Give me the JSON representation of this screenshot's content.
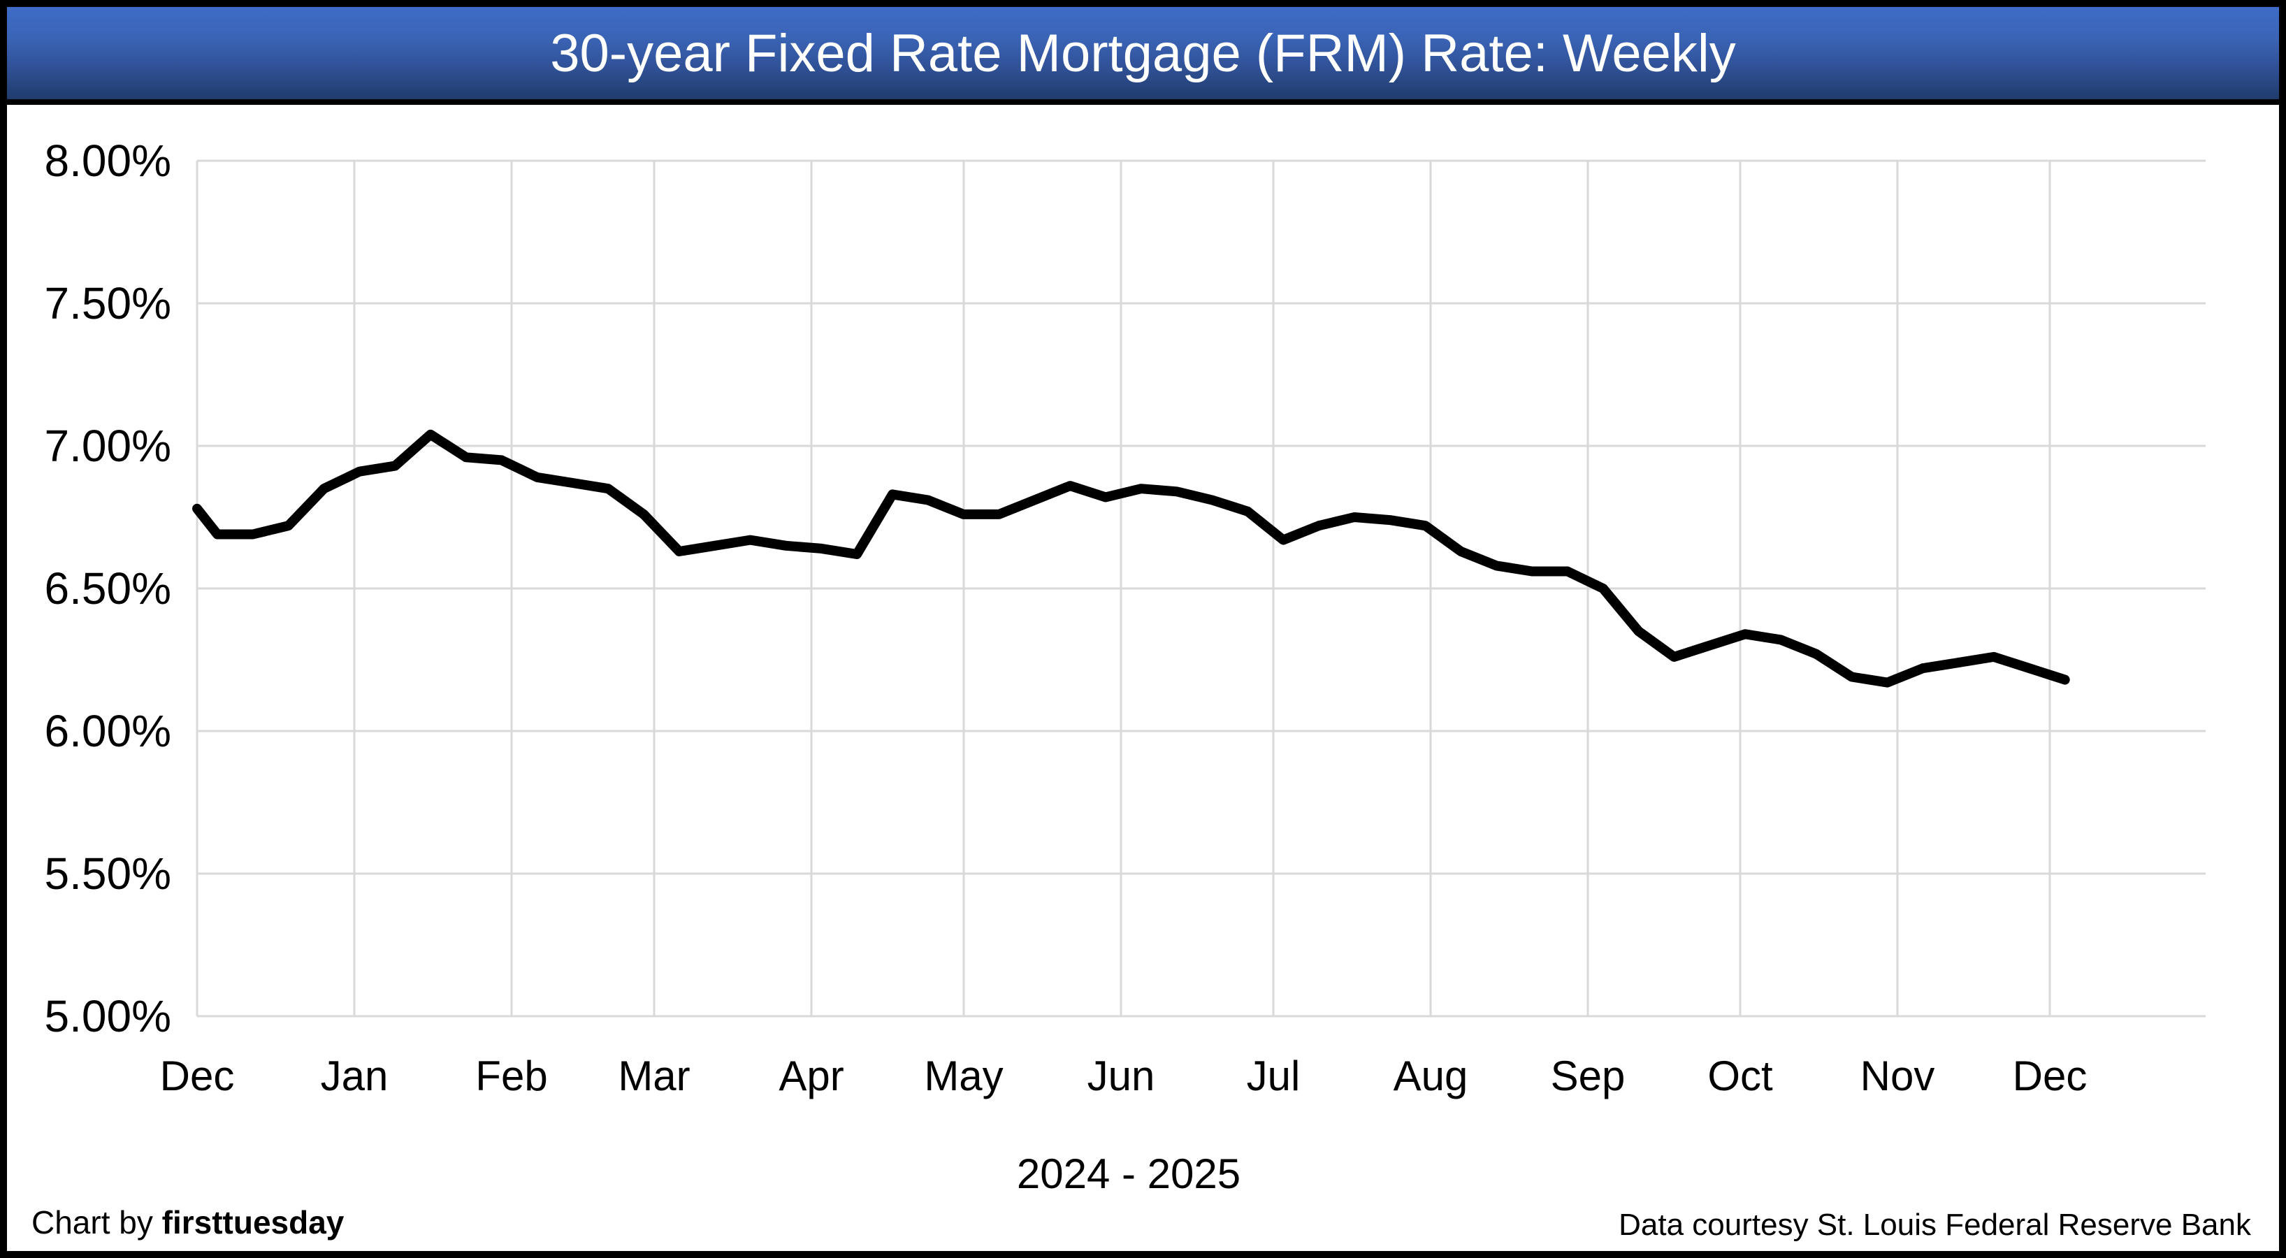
{
  "banner": {
    "title": "30-year Fixed Rate Mortgage (FRM) Rate: Weekly",
    "gradient_top": "#3e6dc7",
    "gradient_bottom": "#203c6c",
    "text_color": "#ffffff"
  },
  "footer": {
    "credit_prefix": "Chart by ",
    "credit_brand": "firsttuesday",
    "source": "Data courtesy St. Louis Federal Reserve Bank"
  },
  "chart_data": {
    "type": "line",
    "title": "30-year Fixed Rate Mortgage (FRM) Rate: Weekly",
    "xlabel": "2024 - 2025",
    "ylabel": "",
    "x_tick_labels": [
      "Dec",
      "Jan",
      "Feb",
      "Mar",
      "Apr",
      "May",
      "Jun",
      "Jul",
      "Aug",
      "Sep",
      "Oct",
      "Nov",
      "Dec"
    ],
    "y_tick_labels": [
      "8.00%",
      "7.50%",
      "7.00%",
      "6.50%",
      "6.00%",
      "5.50%",
      "5.00%"
    ],
    "ylim": [
      5.0,
      8.0
    ],
    "y_tick_step": 0.5,
    "grid": true,
    "legend": false,
    "line_color": "#000000",
    "grid_color": "#d9d9d9",
    "series": [
      {
        "name": "30-year FRM rate (weekly)",
        "frequency": "weekly",
        "values": [
          6.78,
          6.69,
          6.69,
          6.72,
          6.85,
          6.91,
          6.93,
          7.04,
          6.96,
          6.95,
          6.89,
          6.87,
          6.85,
          6.76,
          6.63,
          6.65,
          6.67,
          6.65,
          6.64,
          6.62,
          6.83,
          6.81,
          6.76,
          6.76,
          6.81,
          6.86,
          6.82,
          6.85,
          6.84,
          6.81,
          6.77,
          6.67,
          6.72,
          6.75,
          6.74,
          6.72,
          6.63,
          6.58,
          6.56,
          6.56,
          6.5,
          6.35,
          6.26,
          6.3,
          6.34,
          6.32,
          6.27,
          6.19,
          6.17,
          6.22,
          6.24,
          6.26,
          6.22,
          6.18
        ]
      }
    ]
  }
}
